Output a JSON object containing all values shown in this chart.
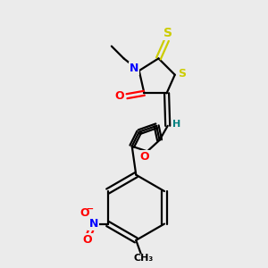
{
  "bg_color": "#ebebeb",
  "bond_color": "#000000",
  "S_color": "#cccc00",
  "N_color": "#0000ff",
  "O_color": "#ff0000",
  "H_color": "#008080",
  "figsize": [
    3.0,
    3.0
  ],
  "dpi": 100,
  "xlim": [
    55,
    245
  ],
  "ylim": [
    30,
    290
  ]
}
